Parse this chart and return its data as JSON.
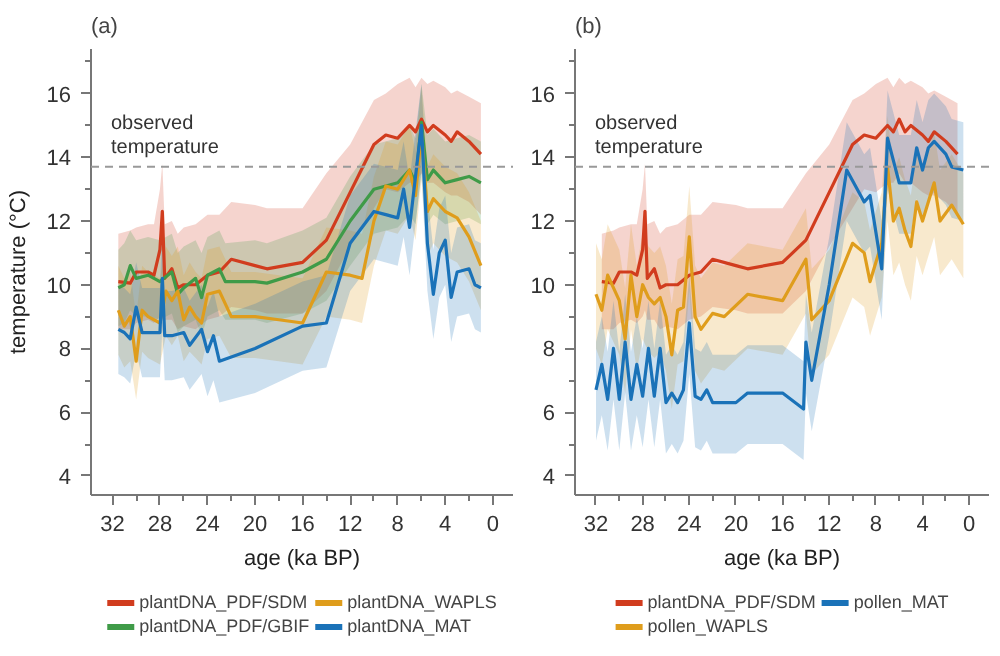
{
  "chart_data": [
    {
      "type": "line",
      "title": "(a)",
      "xlabel": "age (ka BP)",
      "ylabel": "temperature (°C)",
      "xlim": [
        33.8,
        -1.7
      ],
      "ylim": [
        3.4,
        17.4
      ],
      "xticks": [
        32,
        {
          "value": 30,
          "label": null
        },
        28,
        {
          "value": 26,
          "label": null
        },
        24,
        {
          "value": 22,
          "label": null
        },
        20,
        {
          "value": 18,
          "label": null
        },
        16,
        {
          "value": 14,
          "label": null
        },
        12,
        {
          "value": 10,
          "label": null
        },
        8,
        {
          "value": 6,
          "label": null
        },
        4,
        {
          "value": 2,
          "label": null
        },
        0
      ],
      "yticks": [
        4,
        {
          "value": 5,
          "label": null
        },
        6,
        {
          "value": 7,
          "label": null
        },
        8,
        {
          "value": 9,
          "label": null
        },
        10,
        {
          "value": 11,
          "label": null
        },
        12,
        {
          "value": 13,
          "label": null
        },
        14,
        {
          "value": 15,
          "label": null
        },
        16,
        {
          "value": 17,
          "label": null
        }
      ],
      "grid": false,
      "legend": "bottom",
      "line_style": "solid",
      "ref_lines": [
        {
          "axis": "y",
          "value": 13.7,
          "label": "observed temperature",
          "color": "#999999",
          "line_style": "dashed"
        }
      ],
      "series": [
        {
          "name": "plantDNA_PDF/SDM",
          "color": "#d13c1e",
          "x": [
            31.5,
            30.5,
            30,
            29,
            28.5,
            28,
            27.8,
            27.6,
            27,
            26.5,
            26,
            25,
            24,
            23,
            22,
            20,
            19,
            16,
            14,
            12,
            10,
            9,
            8,
            7,
            6.5,
            6,
            5.5,
            5,
            4,
            3.5,
            3,
            2,
            1
          ],
          "values": [
            10.1,
            10.05,
            10.4,
            10.4,
            10.3,
            11.1,
            12.3,
            10.2,
            10.5,
            9.9,
            10.0,
            10.0,
            10.3,
            10.4,
            10.8,
            10.6,
            10.5,
            10.7,
            11.4,
            12.9,
            14.4,
            14.7,
            14.6,
            15.0,
            14.8,
            15.2,
            14.8,
            15.0,
            14.7,
            14.5,
            14.8,
            14.5,
            14.1
          ],
          "lower": [
            8.6,
            8.6,
            8.8,
            8.9,
            8.8,
            9.0,
            9.2,
            8.9,
            8.9,
            8.6,
            8.7,
            8.6,
            8.9,
            9.0,
            9.3,
            9.2,
            9.1,
            9.1,
            9.8,
            11.2,
            12.4,
            13.0,
            12.9,
            13.2,
            13.2,
            13.5,
            13.2,
            13.2,
            12.9,
            12.8,
            12.8,
            12.6,
            12.2
          ],
          "upper": [
            11.6,
            11.7,
            11.8,
            11.9,
            11.9,
            13.0,
            13.8,
            11.9,
            12.0,
            11.6,
            11.8,
            11.9,
            12.2,
            12.2,
            12.6,
            12.5,
            12.4,
            12.4,
            13.5,
            14.4,
            15.8,
            16.0,
            16.3,
            16.5,
            16.2,
            16.5,
            16.3,
            16.4,
            16.2,
            16.0,
            16.1,
            15.9,
            15.7
          ]
        },
        {
          "name": "plantDNA_PDF/GBIF",
          "color": "#3f9b48",
          "x": [
            31.5,
            31,
            30.5,
            30,
            29,
            28,
            27,
            26.5,
            26,
            25,
            24.5,
            24,
            23,
            22.5,
            20,
            19,
            16,
            14,
            12,
            10,
            8,
            7,
            6.5,
            6,
            5.5,
            5,
            4,
            3,
            2,
            1
          ],
          "values": [
            9.9,
            10.0,
            10.6,
            10.2,
            10.3,
            10.1,
            10.4,
            9.7,
            9.9,
            10.2,
            9.6,
            10.3,
            10.5,
            10.1,
            10.1,
            10.05,
            10.4,
            10.8,
            12.0,
            13.0,
            13.2,
            13.6,
            13.2,
            15.1,
            13.3,
            13.6,
            13.2,
            13.3,
            13.4,
            13.2
          ],
          "lower": [
            8.7,
            8.8,
            9.2,
            9.0,
            9.0,
            8.9,
            9.1,
            8.5,
            8.7,
            8.9,
            8.4,
            9.0,
            9.2,
            8.9,
            8.9,
            8.8,
            9.1,
            9.5,
            10.6,
            11.6,
            11.8,
            12.2,
            11.9,
            13.6,
            11.9,
            12.2,
            11.9,
            12.0,
            12.1,
            11.9
          ],
          "upper": [
            11.1,
            11.3,
            11.7,
            11.4,
            11.5,
            11.4,
            11.6,
            11.0,
            11.2,
            11.4,
            11.0,
            11.5,
            11.7,
            11.3,
            11.4,
            11.3,
            11.7,
            12.1,
            13.4,
            14.4,
            14.6,
            15.0,
            14.6,
            16.3,
            14.7,
            14.9,
            14.5,
            14.6,
            14.7,
            14.5
          ]
        },
        {
          "name": "plantDNA_WAPLS",
          "color": "#df9d1c",
          "x": [
            31.5,
            31,
            30.5,
            30,
            29.5,
            29,
            28,
            27.5,
            27,
            26.5,
            26,
            25.5,
            25,
            24.5,
            24,
            23,
            22,
            20,
            18,
            16,
            14,
            12,
            11,
            10,
            9,
            8,
            7,
            6.5,
            6,
            5.5,
            5,
            4,
            3,
            2,
            1
          ],
          "values": [
            9.2,
            8.7,
            9.0,
            7.6,
            9.2,
            9.0,
            8.8,
            9.8,
            9.5,
            9.8,
            8.9,
            9.3,
            9.0,
            8.8,
            9.7,
            9.8,
            9.0,
            9.0,
            8.9,
            8.8,
            10.4,
            10.3,
            10.2,
            12.0,
            13.1,
            13.0,
            13.6,
            12.8,
            14.8,
            12.3,
            12.7,
            12.3,
            12.1,
            11.5,
            10.6
          ],
          "lower": [
            7.8,
            7.4,
            7.6,
            6.4,
            7.9,
            7.7,
            7.5,
            8.4,
            8.1,
            8.4,
            7.6,
            7.9,
            7.7,
            7.5,
            8.3,
            8.4,
            7.7,
            7.7,
            7.6,
            7.5,
            9.0,
            8.9,
            8.8,
            10.6,
            11.7,
            11.6,
            12.2,
            11.4,
            13.3,
            10.9,
            11.3,
            10.9,
            10.7,
            10.1,
            9.2
          ],
          "upper": [
            10.6,
            10.2,
            10.4,
            9.0,
            10.6,
            10.4,
            10.2,
            11.2,
            10.9,
            11.2,
            10.3,
            10.7,
            10.4,
            10.2,
            11.1,
            11.2,
            10.4,
            10.4,
            10.3,
            10.2,
            11.8,
            11.7,
            11.6,
            13.4,
            14.5,
            14.4,
            15.0,
            14.2,
            16.2,
            13.7,
            14.1,
            13.7,
            13.5,
            12.9,
            12.0
          ]
        },
        {
          "name": "plantDNA_MAT",
          "color": "#1a72b8",
          "x": [
            31.5,
            31,
            30.5,
            30,
            29.5,
            28.5,
            28,
            27.8,
            27.6,
            27,
            26,
            25.5,
            24.5,
            24,
            23.5,
            23,
            20,
            16,
            14,
            12,
            10,
            9,
            8,
            7.5,
            7,
            6,
            5.5,
            5,
            4.5,
            4,
            3.5,
            3,
            2,
            1.5,
            1
          ],
          "values": [
            8.6,
            8.5,
            8.3,
            9.3,
            8.5,
            8.5,
            8.5,
            10.2,
            8.4,
            8.4,
            8.5,
            8.1,
            8.6,
            7.9,
            8.4,
            7.6,
            8.0,
            8.7,
            8.8,
            11.3,
            12.3,
            12.2,
            12.1,
            13.0,
            11.8,
            15.0,
            11.3,
            9.7,
            11.0,
            11.4,
            9.6,
            10.4,
            10.5,
            10.0,
            9.9
          ],
          "lower": [
            7.2,
            7.1,
            6.9,
            7.9,
            7.1,
            7.1,
            7.1,
            8.6,
            7.0,
            7.0,
            7.1,
            6.7,
            7.2,
            6.5,
            7.0,
            6.3,
            6.6,
            7.3,
            7.4,
            9.8,
            10.8,
            10.7,
            10.6,
            11.5,
            10.3,
            13.5,
            9.8,
            8.3,
            9.6,
            10.0,
            8.2,
            9.0,
            9.1,
            8.6,
            8.5
          ],
          "upper": [
            10.0,
            9.9,
            9.7,
            10.7,
            9.9,
            9.9,
            9.9,
            11.8,
            9.8,
            9.8,
            9.9,
            9.5,
            10.0,
            9.3,
            9.8,
            9.0,
            9.4,
            10.1,
            10.3,
            12.8,
            13.8,
            13.7,
            13.6,
            14.5,
            13.3,
            16.3,
            12.8,
            11.1,
            12.4,
            12.8,
            11.0,
            11.8,
            11.9,
            11.4,
            11.3
          ]
        }
      ]
    },
    {
      "type": "line",
      "title": "(b)",
      "xlabel": "age (ka BP)",
      "xlim": [
        33.8,
        -1.7
      ],
      "ylim": [
        3.4,
        17.4
      ],
      "xticks": [
        32,
        {
          "value": 30,
          "label": null
        },
        28,
        {
          "value": 26,
          "label": null
        },
        24,
        {
          "value": 22,
          "label": null
        },
        20,
        {
          "value": 18,
          "label": null
        },
        16,
        {
          "value": 14,
          "label": null
        },
        12,
        {
          "value": 10,
          "label": null
        },
        8,
        {
          "value": 6,
          "label": null
        },
        4,
        {
          "value": 2,
          "label": null
        },
        0
      ],
      "yticks": [
        4,
        {
          "value": 5,
          "label": null
        },
        6,
        {
          "value": 7,
          "label": null
        },
        8,
        {
          "value": 9,
          "label": null
        },
        10,
        {
          "value": 11,
          "label": null
        },
        12,
        {
          "value": 13,
          "label": null
        },
        14,
        {
          "value": 15,
          "label": null
        },
        16,
        {
          "value": 17,
          "label": null
        }
      ],
      "grid": false,
      "legend": "bottom",
      "line_style": "solid",
      "ref_lines": [
        {
          "axis": "y",
          "value": 13.7,
          "label": "observed temperature",
          "color": "#999999",
          "line_style": "dashed"
        }
      ],
      "series": [
        {
          "name": "plantDNA_PDF/SDM",
          "color": "#d13c1e",
          "x": [
            31.5,
            30.5,
            30,
            29,
            28.5,
            28,
            27.8,
            27.6,
            27,
            26.5,
            26,
            25,
            24,
            23,
            22,
            20,
            19,
            16,
            14,
            12,
            10,
            9,
            8,
            7,
            6.5,
            6,
            5.5,
            5,
            4,
            3.5,
            3,
            2,
            1
          ],
          "values": [
            10.1,
            10.05,
            10.4,
            10.4,
            10.3,
            11.1,
            12.3,
            10.2,
            10.5,
            9.9,
            10.0,
            10.0,
            10.3,
            10.4,
            10.8,
            10.6,
            10.5,
            10.7,
            11.4,
            12.9,
            14.4,
            14.7,
            14.6,
            15.0,
            14.8,
            15.2,
            14.8,
            15.0,
            14.7,
            14.5,
            14.8,
            14.5,
            14.1
          ],
          "lower": [
            8.6,
            8.6,
            8.8,
            8.9,
            8.8,
            9.0,
            9.2,
            8.9,
            8.9,
            8.6,
            8.7,
            8.6,
            8.9,
            9.0,
            9.3,
            9.2,
            9.1,
            9.1,
            9.8,
            11.2,
            12.4,
            13.0,
            12.9,
            13.2,
            13.2,
            13.5,
            13.2,
            13.2,
            12.9,
            12.8,
            12.8,
            12.6,
            12.2
          ],
          "upper": [
            11.6,
            11.7,
            11.8,
            11.9,
            11.9,
            13.0,
            13.8,
            11.9,
            12.0,
            11.6,
            11.8,
            11.9,
            12.2,
            12.2,
            12.6,
            12.5,
            12.4,
            12.4,
            13.5,
            14.4,
            15.8,
            16.0,
            16.3,
            16.5,
            16.2,
            16.5,
            16.3,
            16.4,
            16.2,
            16.0,
            16.1,
            15.9,
            15.7
          ]
        },
        {
          "name": "pollen_WAPLS",
          "color": "#df9d1c",
          "x": [
            32,
            31.5,
            31,
            30.5,
            30,
            29.5,
            29,
            28.5,
            28,
            27.5,
            27,
            26.5,
            26,
            25.5,
            25,
            24.5,
            24,
            23.5,
            23,
            22,
            21,
            19,
            16,
            14,
            13.5,
            12,
            10,
            9,
            8.5,
            7.5,
            7,
            6.5,
            6,
            5.5,
            5,
            4.5,
            4,
            3,
            2.5,
            1.5,
            0.5
          ],
          "values": [
            9.7,
            9.2,
            10.3,
            9.9,
            9.5,
            8.3,
            10.3,
            9.0,
            10.0,
            9.6,
            9.4,
            9.6,
            9.0,
            7.8,
            9.2,
            9.3,
            11.5,
            9.0,
            8.6,
            9.1,
            9.0,
            9.7,
            9.5,
            10.8,
            8.9,
            9.5,
            11.3,
            11.0,
            10.1,
            11.3,
            13.7,
            12.0,
            12.4,
            11.7,
            11.2,
            12.6,
            12.0,
            13.2,
            12.0,
            12.5,
            11.9
          ],
          "lower": [
            8.0,
            7.5,
            8.6,
            8.2,
            7.8,
            6.6,
            8.6,
            7.3,
            8.3,
            7.9,
            7.7,
            7.9,
            7.3,
            6.1,
            7.5,
            7.6,
            9.8,
            7.3,
            6.9,
            7.4,
            7.3,
            8.0,
            7.8,
            9.1,
            7.2,
            7.8,
            9.6,
            9.3,
            8.4,
            9.6,
            12.0,
            10.3,
            10.7,
            10.0,
            9.5,
            10.9,
            10.3,
            11.5,
            10.3,
            10.8,
            10.2
          ],
          "upper": [
            11.3,
            10.8,
            11.9,
            11.5,
            11.1,
            9.9,
            11.9,
            10.6,
            11.6,
            11.2,
            11.0,
            11.2,
            10.6,
            9.4,
            10.8,
            10.9,
            13.1,
            10.6,
            10.2,
            10.7,
            10.6,
            11.3,
            11.1,
            12.4,
            10.5,
            11.1,
            12.9,
            12.6,
            11.7,
            12.9,
            15.3,
            13.6,
            14.0,
            13.3,
            12.8,
            14.2,
            13.6,
            14.8,
            13.6,
            14.1,
            13.5
          ]
        },
        {
          "name": "pollen_MAT",
          "color": "#1a72b8",
          "x": [
            32,
            31.5,
            31,
            30.5,
            30,
            29.5,
            29,
            28.5,
            28,
            27.5,
            27,
            26.5,
            26,
            25.5,
            25,
            24.5,
            24,
            23.5,
            23,
            22.5,
            22,
            20,
            19,
            16,
            14.2,
            14,
            13.5,
            12,
            10.5,
            9,
            8.5,
            7.5,
            7,
            6,
            5,
            4.5,
            4,
            3.5,
            3,
            2,
            1.5,
            0.5
          ],
          "values": [
            6.7,
            7.5,
            6.4,
            8.0,
            6.4,
            8.2,
            6.4,
            7.5,
            6.5,
            8.0,
            6.5,
            8.0,
            6.3,
            6.6,
            6.3,
            6.7,
            8.8,
            6.5,
            6.4,
            6.7,
            6.3,
            6.3,
            6.6,
            6.6,
            6.1,
            8.2,
            7.0,
            10.0,
            13.6,
            12.6,
            12.8,
            10.5,
            14.6,
            13.2,
            13.2,
            14.3,
            13.6,
            14.3,
            14.5,
            14.1,
            13.7,
            13.6
          ],
          "lower": [
            5.1,
            5.9,
            4.8,
            6.4,
            4.8,
            6.6,
            4.8,
            5.9,
            4.9,
            6.4,
            4.9,
            6.4,
            4.7,
            5.0,
            4.7,
            5.1,
            7.2,
            4.9,
            4.8,
            5.1,
            4.7,
            4.7,
            5.0,
            5.0,
            4.5,
            6.6,
            5.4,
            8.4,
            12.0,
            11.0,
            11.2,
            8.9,
            13.0,
            11.6,
            11.6,
            12.7,
            12.0,
            12.7,
            12.9,
            12.5,
            12.1,
            12.0
          ],
          "upper": [
            8.2,
            9.0,
            7.9,
            9.5,
            7.9,
            9.7,
            7.9,
            9.0,
            8.0,
            9.5,
            8.0,
            9.5,
            7.8,
            8.1,
            7.8,
            8.2,
            10.3,
            8.0,
            7.9,
            8.2,
            7.8,
            7.8,
            8.1,
            8.1,
            7.6,
            9.7,
            8.5,
            11.5,
            15.1,
            14.1,
            14.3,
            12.0,
            16.1,
            14.7,
            14.7,
            15.8,
            15.1,
            15.8,
            16.0,
            15.6,
            15.2,
            15.1
          ]
        }
      ]
    }
  ]
}
